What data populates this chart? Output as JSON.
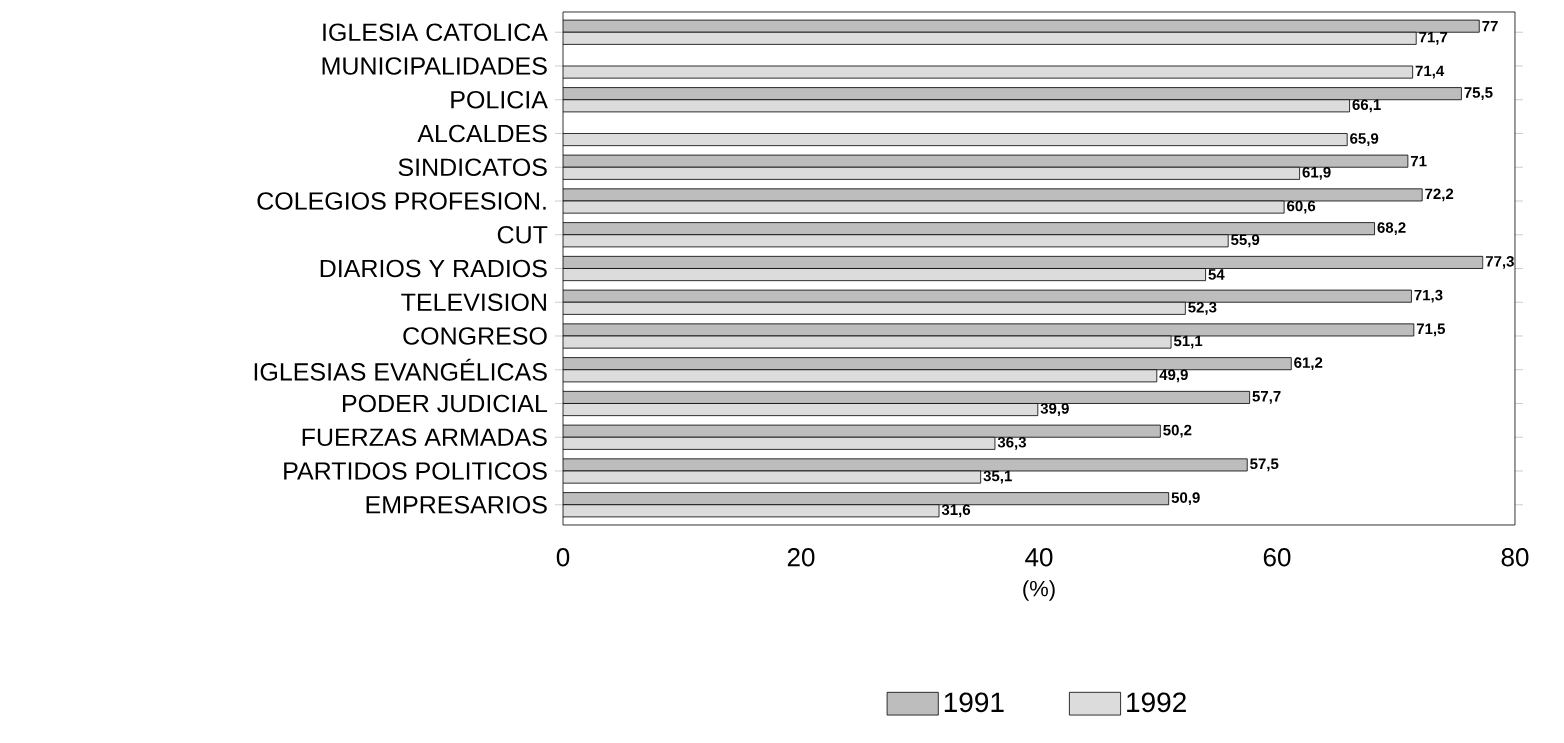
{
  "chart_data": {
    "type": "bar",
    "orientation": "horizontal",
    "xlabel": "(%)",
    "categories": [
      "IGLESIA CATOLICA",
      "MUNICIPALIDADES",
      "POLICIA",
      "ALCALDES",
      "SINDICATOS",
      "COLEGIOS PROFESION.",
      "CUT",
      "DIARIOS Y RADIOS",
      "TELEVISION",
      "CONGRESO",
      "IGLESIAS EVANGÉLICAS",
      "PODER JUDICIAL",
      "FUERZAS ARMADAS",
      "PARTIDOS POLITICOS",
      "EMPRESARIOS"
    ],
    "series": [
      {
        "name": "1991",
        "color": "#bdbdbd",
        "values": [
          77,
          null,
          75.5,
          null,
          71,
          72.2,
          68.2,
          77.3,
          71.3,
          71.5,
          61.2,
          57.7,
          50.2,
          57.5,
          50.9
        ],
        "value_labels": [
          "77",
          null,
          "75,5",
          null,
          "71",
          "72,2",
          "68,2",
          "77,3",
          "71,3",
          "71,5",
          "61,2",
          "57,7",
          "50,2",
          "57,5",
          "50,9"
        ]
      },
      {
        "name": "1992",
        "color": "#dcdcdc",
        "values": [
          71.7,
          71.4,
          66.1,
          65.9,
          61.9,
          60.6,
          55.9,
          54,
          52.3,
          51.1,
          49.9,
          39.9,
          36.3,
          35.1,
          31.6
        ],
        "value_labels": [
          "71,7",
          "71,4",
          "66,1",
          "65,9",
          "61,9",
          "60,6",
          "55,9",
          "54",
          "52,3",
          "51,1",
          "49,9",
          "39,9",
          "36,3",
          "35,1",
          "31,6"
        ]
      }
    ],
    "xlim": [
      0,
      80
    ],
    "xticks": [
      0,
      20,
      40,
      60,
      80
    ],
    "grid": false,
    "legend": "bottom"
  }
}
